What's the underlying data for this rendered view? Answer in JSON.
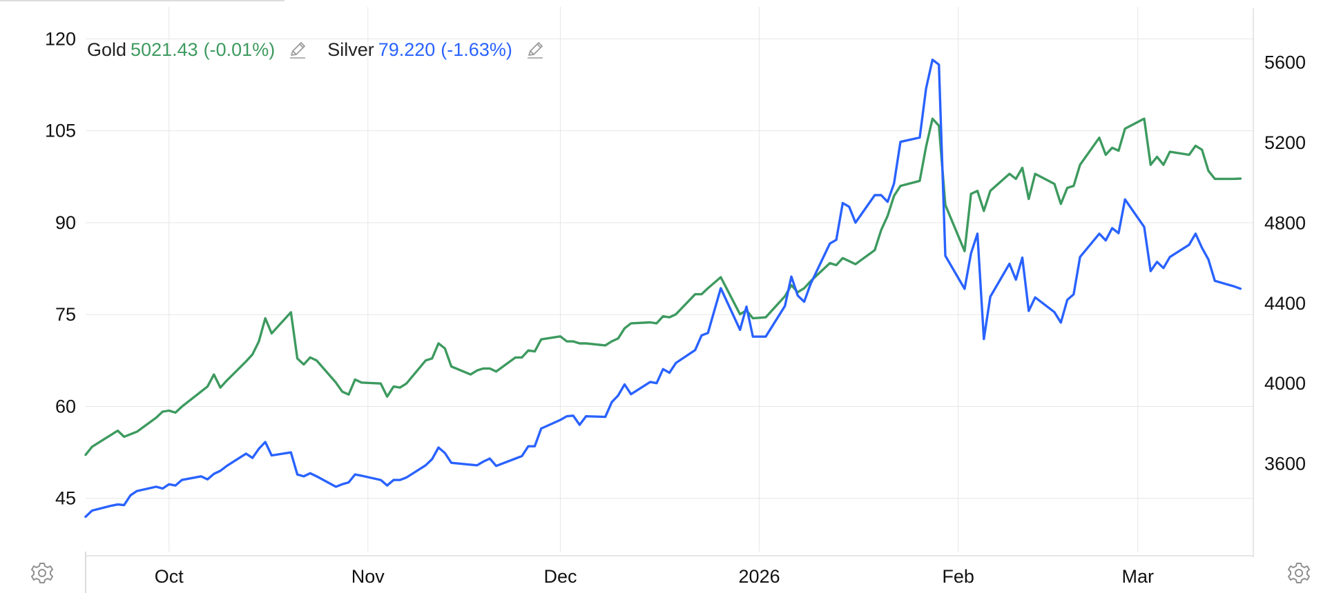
{
  "colors": {
    "gold": "#3d9a5f",
    "silver": "#2962ff",
    "grid": "#e6e6e6",
    "axis_text": "#111111",
    "icon": "#9a9a9a"
  },
  "legend": {
    "gold": {
      "name": "Gold",
      "value": "5021.43",
      "change": "(-0.01%)",
      "edit_icon": "pencil-icon"
    },
    "silver": {
      "name": "Silver",
      "value": "79.220",
      "change": "(-1.63%)",
      "edit_icon": "pencil-icon"
    }
  },
  "settings": {
    "left_icon": "gear-icon",
    "right_icon": "gear-icon"
  },
  "chart_data": {
    "type": "line",
    "title": "",
    "x": {
      "type": "date",
      "range": [
        "2025-09-18",
        "2026-03-19"
      ],
      "ticks": [
        {
          "date": "2025-10-01",
          "label": "Oct"
        },
        {
          "date": "2025-11-01",
          "label": "Nov"
        },
        {
          "date": "2025-12-01",
          "label": "Dec"
        },
        {
          "date": "2026-01-01",
          "label": "2026"
        },
        {
          "date": "2026-02-01",
          "label": "Feb"
        },
        {
          "date": "2026-03-01",
          "label": "Mar"
        }
      ]
    },
    "y_left": {
      "series": "Silver",
      "range": [
        30,
        125
      ],
      "ticks": [
        45,
        60,
        75,
        90,
        105,
        120
      ]
    },
    "y_right": {
      "series": "Gold",
      "range": [
        2970,
        5870
      ],
      "ticks": [
        3600,
        4000,
        4400,
        4800,
        5200,
        5600
      ]
    },
    "grid": true,
    "legend_position": "top-left",
    "series": [
      {
        "name": "Gold",
        "axis": "right",
        "points": [
          [
            "2025-09-18",
            3645
          ],
          [
            "2025-09-19",
            3685
          ],
          [
            "2025-09-22",
            3745
          ],
          [
            "2025-09-23",
            3765
          ],
          [
            "2025-09-24",
            3735
          ],
          [
            "2025-09-26",
            3760
          ],
          [
            "2025-09-29",
            3830
          ],
          [
            "2025-09-30",
            3860
          ],
          [
            "2025-10-01",
            3865
          ],
          [
            "2025-10-02",
            3855
          ],
          [
            "2025-10-03",
            3885
          ],
          [
            "2025-10-06",
            3960
          ],
          [
            "2025-10-07",
            3985
          ],
          [
            "2025-10-08",
            4045
          ],
          [
            "2025-10-09",
            3980
          ],
          [
            "2025-10-10",
            4015
          ],
          [
            "2025-10-13",
            4110
          ],
          [
            "2025-10-14",
            4145
          ],
          [
            "2025-10-15",
            4210
          ],
          [
            "2025-10-16",
            4325
          ],
          [
            "2025-10-17",
            4250
          ],
          [
            "2025-10-20",
            4355
          ],
          [
            "2025-10-21",
            4125
          ],
          [
            "2025-10-22",
            4095
          ],
          [
            "2025-10-23",
            4130
          ],
          [
            "2025-10-24",
            4115
          ],
          [
            "2025-10-27",
            4005
          ],
          [
            "2025-10-28",
            3960
          ],
          [
            "2025-10-29",
            3945
          ],
          [
            "2025-10-30",
            4020
          ],
          [
            "2025-10-31",
            4005
          ],
          [
            "2025-11-03",
            4000
          ],
          [
            "2025-11-04",
            3935
          ],
          [
            "2025-11-05",
            3985
          ],
          [
            "2025-11-06",
            3980
          ],
          [
            "2025-11-07",
            4000
          ],
          [
            "2025-11-10",
            4115
          ],
          [
            "2025-11-11",
            4125
          ],
          [
            "2025-11-12",
            4200
          ],
          [
            "2025-11-13",
            4175
          ],
          [
            "2025-11-14",
            4085
          ],
          [
            "2025-11-17",
            4045
          ],
          [
            "2025-11-18",
            4065
          ],
          [
            "2025-11-19",
            4075
          ],
          [
            "2025-11-20",
            4075
          ],
          [
            "2025-11-21",
            4060
          ],
          [
            "2025-11-24",
            4130
          ],
          [
            "2025-11-25",
            4130
          ],
          [
            "2025-11-26",
            4165
          ],
          [
            "2025-11-27",
            4160
          ],
          [
            "2025-11-28",
            4220
          ],
          [
            "2025-12-01",
            4235
          ],
          [
            "2025-12-02",
            4210
          ],
          [
            "2025-12-03",
            4210
          ],
          [
            "2025-12-04",
            4200
          ],
          [
            "2025-12-05",
            4200
          ],
          [
            "2025-12-08",
            4190
          ],
          [
            "2025-12-09",
            4210
          ],
          [
            "2025-12-10",
            4225
          ],
          [
            "2025-12-11",
            4275
          ],
          [
            "2025-12-12",
            4300
          ],
          [
            "2025-12-15",
            4305
          ],
          [
            "2025-12-16",
            4300
          ],
          [
            "2025-12-17",
            4335
          ],
          [
            "2025-12-18",
            4330
          ],
          [
            "2025-12-19",
            4345
          ],
          [
            "2025-12-22",
            4445
          ],
          [
            "2025-12-23",
            4445
          ],
          [
            "2025-12-24",
            4475
          ],
          [
            "2025-12-26",
            4530
          ],
          [
            "2025-12-29",
            4345
          ],
          [
            "2025-12-30",
            4365
          ],
          [
            "2025-12-31",
            4325
          ],
          [
            "2026-01-02",
            4330
          ],
          [
            "2026-01-05",
            4435
          ],
          [
            "2026-01-06",
            4490
          ],
          [
            "2026-01-07",
            4455
          ],
          [
            "2026-01-08",
            4475
          ],
          [
            "2026-01-09",
            4510
          ],
          [
            "2026-01-12",
            4600
          ],
          [
            "2026-01-13",
            4590
          ],
          [
            "2026-01-14",
            4625
          ],
          [
            "2026-01-15",
            4610
          ],
          [
            "2026-01-16",
            4595
          ],
          [
            "2026-01-19",
            4665
          ],
          [
            "2026-01-20",
            4765
          ],
          [
            "2026-01-21",
            4835
          ],
          [
            "2026-01-22",
            4935
          ],
          [
            "2026-01-23",
            4985
          ],
          [
            "2026-01-26",
            5010
          ],
          [
            "2026-01-27",
            5180
          ],
          [
            "2026-01-28",
            5320
          ],
          [
            "2026-01-29",
            5285
          ],
          [
            "2026-01-30",
            4890
          ],
          [
            "2026-02-02",
            4660
          ],
          [
            "2026-02-03",
            4945
          ],
          [
            "2026-02-04",
            4960
          ],
          [
            "2026-02-05",
            4860
          ],
          [
            "2026-02-06",
            4960
          ],
          [
            "2026-02-09",
            5045
          ],
          [
            "2026-02-10",
            5020
          ],
          [
            "2026-02-11",
            5075
          ],
          [
            "2026-02-12",
            4920
          ],
          [
            "2026-02-13",
            5045
          ],
          [
            "2026-02-16",
            4995
          ],
          [
            "2026-02-17",
            4895
          ],
          [
            "2026-02-18",
            4975
          ],
          [
            "2026-02-19",
            4985
          ],
          [
            "2026-02-20",
            5090
          ],
          [
            "2026-02-23",
            5225
          ],
          [
            "2026-02-24",
            5140
          ],
          [
            "2026-02-25",
            5175
          ],
          [
            "2026-02-26",
            5160
          ],
          [
            "2026-02-27",
            5270
          ],
          [
            "2026-03-02",
            5320
          ],
          [
            "2026-03-03",
            5090
          ],
          [
            "2026-03-04",
            5130
          ],
          [
            "2026-03-05",
            5090
          ],
          [
            "2026-03-06",
            5155
          ],
          [
            "2026-03-09",
            5140
          ],
          [
            "2026-03-10",
            5185
          ],
          [
            "2026-03-11",
            5165
          ],
          [
            "2026-03-12",
            5060
          ],
          [
            "2026-03-13",
            5020
          ],
          [
            "2026-03-16",
            5020
          ],
          [
            "2026-03-17",
            5021.43
          ]
        ]
      },
      {
        "name": "Silver",
        "axis": "left",
        "points": [
          [
            "2025-09-18",
            42.0
          ],
          [
            "2025-09-19",
            43.0
          ],
          [
            "2025-09-22",
            43.8
          ],
          [
            "2025-09-23",
            44.0
          ],
          [
            "2025-09-24",
            43.9
          ],
          [
            "2025-09-25",
            45.5
          ],
          [
            "2025-09-26",
            46.2
          ],
          [
            "2025-09-29",
            46.9
          ],
          [
            "2025-09-30",
            46.6
          ],
          [
            "2025-10-01",
            47.3
          ],
          [
            "2025-10-02",
            47.1
          ],
          [
            "2025-10-03",
            48.0
          ],
          [
            "2025-10-06",
            48.6
          ],
          [
            "2025-10-07",
            48.1
          ],
          [
            "2025-10-08",
            49.0
          ],
          [
            "2025-10-09",
            49.5
          ],
          [
            "2025-10-10",
            50.3
          ],
          [
            "2025-10-13",
            52.3
          ],
          [
            "2025-10-14",
            51.6
          ],
          [
            "2025-10-15",
            53.1
          ],
          [
            "2025-10-16",
            54.2
          ],
          [
            "2025-10-17",
            52.0
          ],
          [
            "2025-10-20",
            52.5
          ],
          [
            "2025-10-21",
            48.9
          ],
          [
            "2025-10-22",
            48.6
          ],
          [
            "2025-10-23",
            49.1
          ],
          [
            "2025-10-24",
            48.6
          ],
          [
            "2025-10-27",
            46.9
          ],
          [
            "2025-10-28",
            47.3
          ],
          [
            "2025-10-29",
            47.6
          ],
          [
            "2025-10-30",
            48.9
          ],
          [
            "2025-10-31",
            48.7
          ],
          [
            "2025-11-03",
            48.0
          ],
          [
            "2025-11-04",
            47.1
          ],
          [
            "2025-11-05",
            48.0
          ],
          [
            "2025-11-06",
            48.0
          ],
          [
            "2025-11-07",
            48.4
          ],
          [
            "2025-11-10",
            50.4
          ],
          [
            "2025-11-11",
            51.4
          ],
          [
            "2025-11-12",
            53.3
          ],
          [
            "2025-11-13",
            52.4
          ],
          [
            "2025-11-14",
            50.8
          ],
          [
            "2025-11-17",
            50.5
          ],
          [
            "2025-11-18",
            50.4
          ],
          [
            "2025-11-19",
            51.0
          ],
          [
            "2025-11-20",
            51.5
          ],
          [
            "2025-11-21",
            50.3
          ],
          [
            "2025-11-24",
            51.5
          ],
          [
            "2025-11-25",
            51.9
          ],
          [
            "2025-11-26",
            53.5
          ],
          [
            "2025-11-27",
            53.5
          ],
          [
            "2025-11-28",
            56.4
          ],
          [
            "2025-12-01",
            57.8
          ],
          [
            "2025-12-02",
            58.4
          ],
          [
            "2025-12-03",
            58.5
          ],
          [
            "2025-12-04",
            57.0
          ],
          [
            "2025-12-05",
            58.4
          ],
          [
            "2025-12-08",
            58.3
          ],
          [
            "2025-12-09",
            60.7
          ],
          [
            "2025-12-10",
            61.8
          ],
          [
            "2025-12-11",
            63.6
          ],
          [
            "2025-12-12",
            62.0
          ],
          [
            "2025-12-15",
            64.0
          ],
          [
            "2025-12-16",
            63.8
          ],
          [
            "2025-12-17",
            66.1
          ],
          [
            "2025-12-18",
            65.5
          ],
          [
            "2025-12-19",
            67.1
          ],
          [
            "2025-12-22",
            69.2
          ],
          [
            "2025-12-23",
            71.6
          ],
          [
            "2025-12-24",
            72.0
          ],
          [
            "2025-12-26",
            79.3
          ],
          [
            "2025-12-29",
            72.5
          ],
          [
            "2025-12-30",
            76.3
          ],
          [
            "2025-12-31",
            71.4
          ],
          [
            "2026-01-02",
            71.4
          ],
          [
            "2026-01-05",
            76.4
          ],
          [
            "2026-01-06",
            81.2
          ],
          [
            "2026-01-07",
            78.1
          ],
          [
            "2026-01-08",
            77.1
          ],
          [
            "2026-01-09",
            80.0
          ],
          [
            "2026-01-12",
            86.6
          ],
          [
            "2026-01-13",
            87.2
          ],
          [
            "2026-01-14",
            93.2
          ],
          [
            "2026-01-15",
            92.6
          ],
          [
            "2026-01-16",
            90.0
          ],
          [
            "2026-01-19",
            94.5
          ],
          [
            "2026-01-20",
            94.5
          ],
          [
            "2026-01-21",
            93.4
          ],
          [
            "2026-01-22",
            96.4
          ],
          [
            "2026-01-23",
            103.2
          ],
          [
            "2026-01-26",
            103.9
          ],
          [
            "2026-01-27",
            111.9
          ],
          [
            "2026-01-28",
            116.6
          ],
          [
            "2026-01-29",
            115.8
          ],
          [
            "2026-01-30",
            84.6
          ],
          [
            "2026-02-02",
            79.2
          ],
          [
            "2026-02-03",
            85.0
          ],
          [
            "2026-02-04",
            88.2
          ],
          [
            "2026-02-05",
            71.0
          ],
          [
            "2026-02-06",
            77.9
          ],
          [
            "2026-02-09",
            83.3
          ],
          [
            "2026-02-10",
            80.7
          ],
          [
            "2026-02-11",
            84.3
          ],
          [
            "2026-02-12",
            75.6
          ],
          [
            "2026-02-13",
            77.8
          ],
          [
            "2026-02-16",
            75.4
          ],
          [
            "2026-02-17",
            73.7
          ],
          [
            "2026-02-18",
            77.4
          ],
          [
            "2026-02-19",
            78.3
          ],
          [
            "2026-02-20",
            84.4
          ],
          [
            "2026-02-23",
            88.2
          ],
          [
            "2026-02-24",
            87.1
          ],
          [
            "2026-02-25",
            89.1
          ],
          [
            "2026-02-26",
            88.3
          ],
          [
            "2026-02-27",
            93.8
          ],
          [
            "2026-03-02",
            89.3
          ],
          [
            "2026-03-03",
            82.1
          ],
          [
            "2026-03-04",
            83.6
          ],
          [
            "2026-03-05",
            82.6
          ],
          [
            "2026-03-06",
            84.4
          ],
          [
            "2026-03-09",
            86.4
          ],
          [
            "2026-03-10",
            88.2
          ],
          [
            "2026-03-11",
            85.9
          ],
          [
            "2026-03-12",
            84.0
          ],
          [
            "2026-03-13",
            80.5
          ],
          [
            "2026-03-16",
            79.6
          ],
          [
            "2026-03-17",
            79.22
          ]
        ]
      }
    ]
  }
}
